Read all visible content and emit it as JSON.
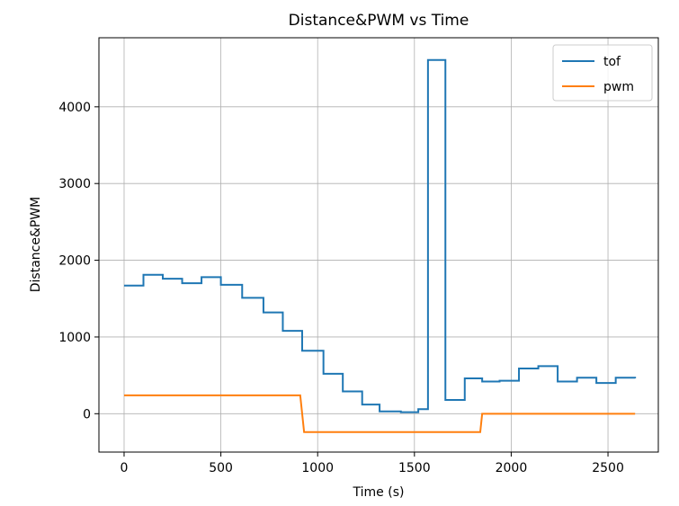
{
  "chart_data": {
    "type": "line",
    "title": "Distance&PWM vs Time",
    "xlabel": "Time (s)",
    "ylabel": "Distance&PWM",
    "xlim": [
      -130,
      2760
    ],
    "ylim": [
      -500,
      4900
    ],
    "xticks": [
      0,
      500,
      1000,
      1500,
      2000,
      2500
    ],
    "yticks": [
      0,
      1000,
      2000,
      3000,
      4000
    ],
    "grid": true,
    "legend_position": "top-right",
    "series": [
      {
        "name": "tof",
        "color": "#1f77b4",
        "step": true,
        "x": [
          0,
          100,
          200,
          300,
          400,
          500,
          610,
          720,
          820,
          920,
          1030,
          1130,
          1230,
          1320,
          1430,
          1520,
          1570,
          1660,
          1760,
          1850,
          1940,
          2040,
          2140,
          2240,
          2340,
          2440,
          2540,
          2640
        ],
        "y": [
          1670,
          1810,
          1760,
          1700,
          1780,
          1680,
          1510,
          1320,
          1080,
          820,
          520,
          290,
          120,
          30,
          20,
          60,
          4610,
          180,
          460,
          420,
          430,
          590,
          620,
          420,
          470,
          400,
          470,
          460
        ]
      },
      {
        "name": "pwm",
        "color": "#ff7f0e",
        "step": false,
        "x": [
          0,
          910,
          930,
          1840,
          1850,
          2640
        ],
        "y": [
          240,
          240,
          -240,
          -240,
          0,
          0
        ]
      }
    ]
  }
}
